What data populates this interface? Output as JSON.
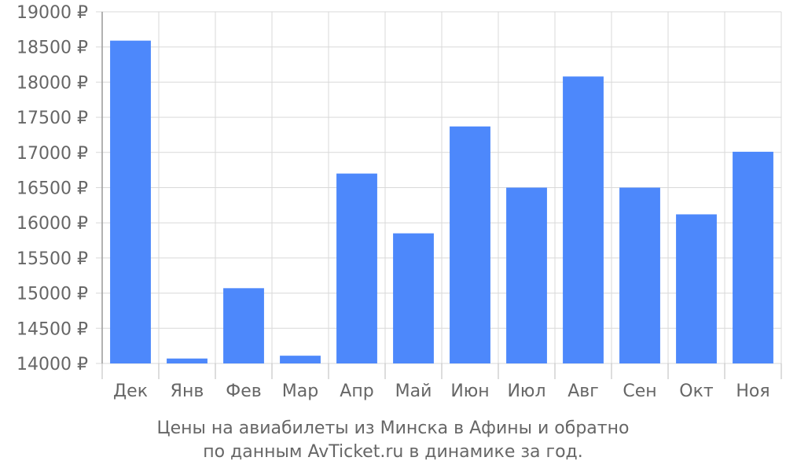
{
  "chart_data": {
    "type": "bar",
    "categories": [
      "Дек",
      "Янв",
      "Фев",
      "Мар",
      "Апр",
      "Май",
      "Июн",
      "Июл",
      "Авг",
      "Сен",
      "Окт",
      "Ноя"
    ],
    "values": [
      18590,
      14070,
      15070,
      14110,
      16700,
      15850,
      17370,
      16500,
      18080,
      16500,
      16120,
      17010
    ],
    "ylim": [
      14000,
      19000
    ],
    "yticks": [
      14000,
      14500,
      15000,
      15500,
      16000,
      16500,
      17000,
      17500,
      18000,
      18500,
      19000
    ],
    "ytick_suffix": " ₽",
    "grid": true,
    "bar_color": "#4d88fb",
    "title_line1": "Цены на авиабилеты из Минска в Афины и обратно",
    "title_line2": "по данным AvTicket.ru в динамике за год."
  }
}
